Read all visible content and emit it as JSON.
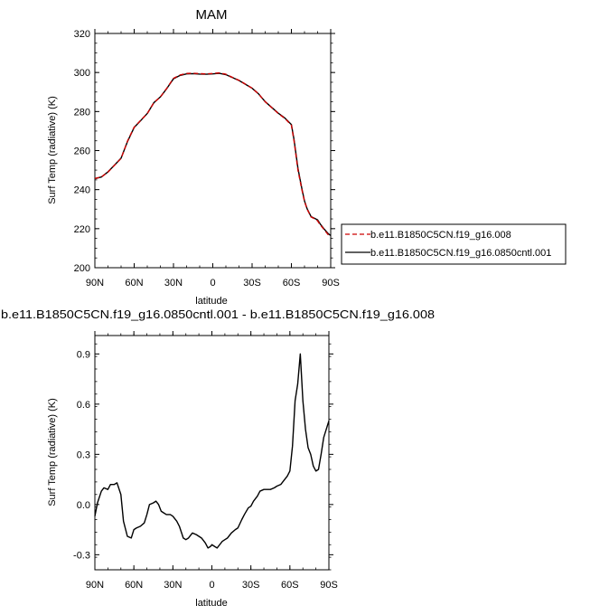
{
  "chart_data": [
    {
      "type": "line",
      "title": "MAM",
      "xlabel": "latitude",
      "ylabel": "Surf Temp (radiative) (K)",
      "xlim": [
        90,
        -90
      ],
      "ylim": [
        200,
        320
      ],
      "xticks": [
        90,
        60,
        30,
        0,
        -30,
        -60,
        -90
      ],
      "xtick_labels": [
        "90N",
        "60N",
        "30N",
        "0",
        "30S",
        "60S",
        "90S"
      ],
      "yticks": [
        200,
        220,
        240,
        260,
        280,
        300,
        320
      ],
      "ytick_labels": [
        "200",
        "220",
        "240",
        "260",
        "280",
        "300",
        "320"
      ],
      "grid": false,
      "legend_position": "right, outside plot",
      "series": [
        {
          "name": "b.e11.B1850C5CN.f19_g16.008",
          "color": "#cc0000",
          "dash": "dashed",
          "x": [
            90,
            85,
            80,
            75,
            70,
            65,
            60,
            55,
            50,
            45,
            40,
            35,
            30,
            25,
            20,
            15,
            10,
            5,
            0,
            -5,
            -10,
            -15,
            -20,
            -25,
            -30,
            -35,
            -40,
            -45,
            -50,
            -55,
            -60,
            -62,
            -65,
            -68,
            -70,
            -72,
            -75,
            -78,
            -80,
            -82,
            -85,
            -88,
            -90
          ],
          "y": [
            245.7,
            246.5,
            249,
            252.5,
            256,
            265,
            272,
            275.5,
            279,
            284.5,
            287.5,
            292,
            297,
            298.7,
            299.5,
            299.6,
            299.4,
            299.3,
            299.5,
            299.8,
            299.1,
            297.5,
            296,
            294,
            292,
            289,
            285,
            282,
            279,
            276.5,
            273,
            265,
            250,
            240,
            234,
            230,
            226,
            225,
            224,
            222,
            219.5,
            217,
            216
          ]
        },
        {
          "name": "b.e11.B1850C5CN.f19_g16.0850cntl.001",
          "color": "#000000",
          "dash": "solid",
          "x": [
            90,
            85,
            80,
            75,
            70,
            65,
            60,
            55,
            50,
            45,
            40,
            35,
            30,
            25,
            20,
            15,
            10,
            5,
            0,
            -5,
            -10,
            -15,
            -20,
            -25,
            -30,
            -35,
            -40,
            -45,
            -50,
            -55,
            -60,
            -62,
            -65,
            -68,
            -70,
            -72,
            -75,
            -78,
            -80,
            -82,
            -85,
            -88,
            -90
          ],
          "y": [
            245.6,
            246.5,
            249.1,
            252.6,
            256.1,
            264.8,
            271.85,
            275.38,
            279.02,
            284.52,
            287.5,
            291.9,
            296.8,
            298.5,
            299.3,
            299.4,
            299.2,
            299.1,
            299.3,
            299.6,
            298.9,
            297.4,
            295.9,
            293.95,
            291.95,
            289.0,
            285.05,
            282.1,
            279.15,
            276.7,
            273.3,
            265.7,
            250.9,
            240.5,
            234.2,
            230.2,
            226.2,
            225.2,
            224.5,
            222.4,
            219.8,
            217.5,
            216.5
          ]
        }
      ]
    },
    {
      "type": "line",
      "title": "b.e11.B1850C5CN.f19_g16.0850cntl.001 - b.e11.B1850C5CN.f19_g16.008",
      "xlabel": "latitude",
      "ylabel": "Surf Temp (radiative) (K)",
      "xlim": [
        90,
        -90
      ],
      "ylim": [
        -0.39,
        1.01
      ],
      "xticks": [
        90,
        60,
        30,
        0,
        -30,
        -60,
        -90
      ],
      "xtick_labels": [
        "90N",
        "60N",
        "30N",
        "0",
        "30S",
        "60S",
        "90S"
      ],
      "yticks": [
        -0.3,
        0.0,
        0.3,
        0.6,
        0.9
      ],
      "ytick_labels": [
        "-0.3",
        "0.0",
        "0.3",
        "0.6",
        "0.9"
      ],
      "grid": false,
      "series": [
        {
          "name": "",
          "color": "#000000",
          "dash": "solid",
          "x": [
            90,
            88,
            85,
            83,
            80,
            78,
            75,
            73,
            70,
            68,
            65,
            62,
            60,
            58,
            55,
            52,
            50,
            48,
            45,
            43,
            41,
            39,
            37,
            35,
            32,
            30,
            27,
            25,
            22,
            20,
            18,
            15,
            12,
            10,
            8,
            5,
            3,
            1,
            0,
            -2,
            -4,
            -6,
            -8,
            -10,
            -12,
            -15,
            -18,
            -20,
            -23,
            -25,
            -28,
            -30,
            -32,
            -35,
            -37,
            -40,
            -43,
            -45,
            -48,
            -50,
            -53,
            -55,
            -58,
            -60,
            -62,
            -64,
            -66,
            -68,
            -70,
            -72,
            -74,
            -76,
            -78,
            -80,
            -82,
            -84,
            -86,
            -88,
            -90
          ],
          "y": [
            -0.07,
            0.01,
            0.08,
            0.1,
            0.09,
            0.12,
            0.12,
            0.13,
            0.06,
            -0.1,
            -0.19,
            -0.2,
            -0.15,
            -0.14,
            -0.13,
            -0.11,
            -0.06,
            0.0,
            0.01,
            0.02,
            0.0,
            -0.04,
            -0.05,
            -0.06,
            -0.06,
            -0.07,
            -0.1,
            -0.13,
            -0.2,
            -0.21,
            -0.2,
            -0.17,
            -0.18,
            -0.19,
            -0.2,
            -0.23,
            -0.26,
            -0.25,
            -0.24,
            -0.25,
            -0.26,
            -0.24,
            -0.22,
            -0.21,
            -0.2,
            -0.17,
            -0.15,
            -0.14,
            -0.09,
            -0.06,
            -0.02,
            -0.01,
            0.02,
            0.05,
            0.08,
            0.09,
            0.09,
            0.09,
            0.1,
            0.11,
            0.12,
            0.14,
            0.17,
            0.2,
            0.35,
            0.62,
            0.72,
            0.9,
            0.62,
            0.45,
            0.34,
            0.3,
            0.23,
            0.2,
            0.21,
            0.3,
            0.4,
            0.45,
            0.5
          ]
        }
      ]
    }
  ]
}
